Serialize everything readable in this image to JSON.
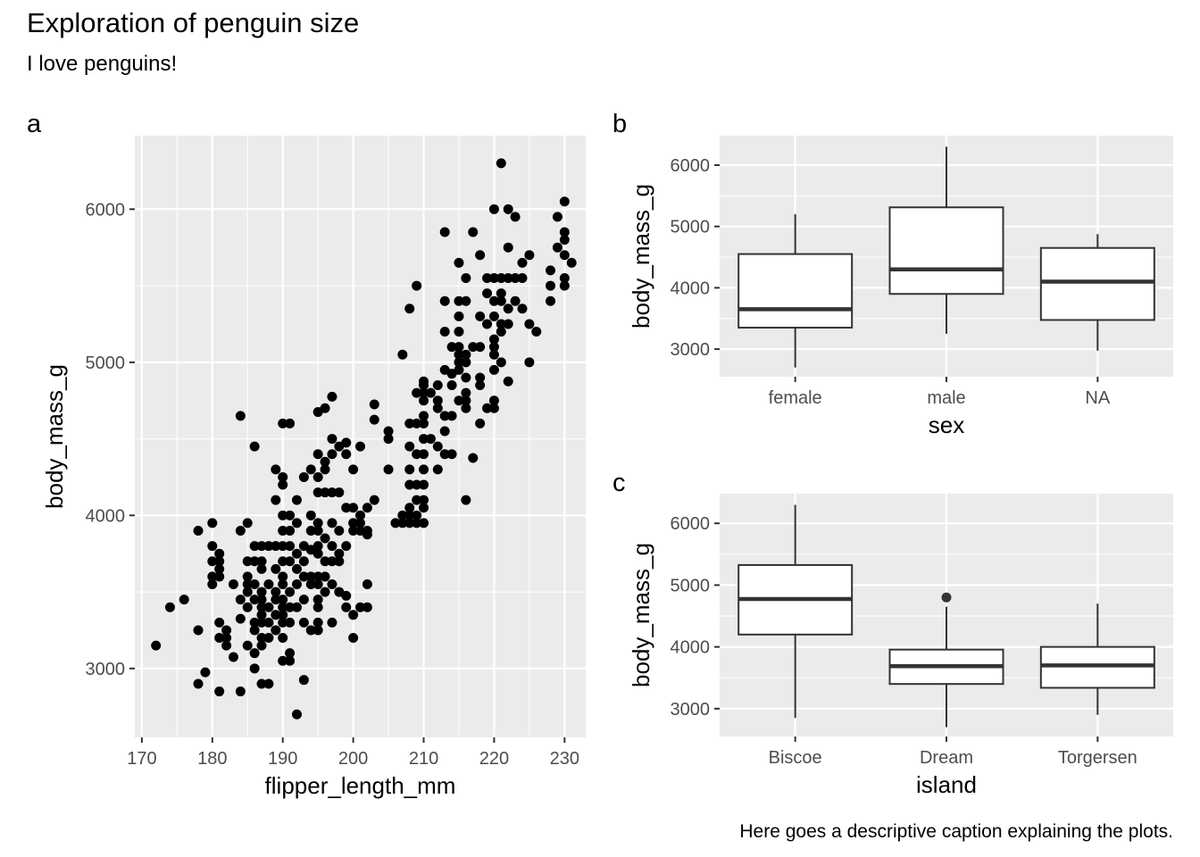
{
  "title": "Exploration of penguin size",
  "subtitle": "I love penguins!",
  "caption": "Here goes a descriptive caption explaining the plots.",
  "chart_data": [
    {
      "type": "scatter",
      "tag": "a",
      "xlabel": "flipper_length_mm",
      "ylabel": "body_mass_g",
      "xlim": [
        169,
        233
      ],
      "ylim": [
        2550,
        6480
      ],
      "xticks": [
        170,
        180,
        190,
        200,
        210,
        220,
        230
      ],
      "yticks": [
        3000,
        4000,
        5000,
        6000
      ],
      "grid": true,
      "points": [
        [
          172,
          3150
        ],
        [
          174,
          3400
        ],
        [
          176,
          3450
        ],
        [
          178,
          3250
        ],
        [
          178,
          2900
        ],
        [
          178,
          3900
        ],
        [
          179,
          2975
        ],
        [
          180,
          3950
        ],
        [
          180,
          3800
        ],
        [
          180,
          3700
        ],
        [
          180,
          3600
        ],
        [
          180,
          3550
        ],
        [
          181,
          3200
        ],
        [
          181,
          3300
        ],
        [
          181,
          3600
        ],
        [
          181,
          3650
        ],
        [
          181,
          3700
        ],
        [
          181,
          3750
        ],
        [
          181,
          2850
        ],
        [
          182,
          3150
        ],
        [
          182,
          3200
        ],
        [
          182,
          3250
        ],
        [
          183,
          3550
        ],
        [
          183,
          3075
        ],
        [
          184,
          3900
        ],
        [
          184,
          3450
        ],
        [
          184,
          3325
        ],
        [
          184,
          2850
        ],
        [
          184,
          4650
        ],
        [
          185,
          3700
        ],
        [
          185,
          3600
        ],
        [
          185,
          3550
        ],
        [
          185,
          3500
        ],
        [
          185,
          3400
        ],
        [
          185,
          3950
        ],
        [
          185,
          3150
        ],
        [
          186,
          3800
        ],
        [
          186,
          3700
        ],
        [
          186,
          3550
        ],
        [
          186,
          3450
        ],
        [
          186,
          3300
        ],
        [
          186,
          3250
        ],
        [
          186,
          3100
        ],
        [
          186,
          3000
        ],
        [
          186,
          4450
        ],
        [
          187,
          3800
        ],
        [
          187,
          3700
        ],
        [
          187,
          3650
        ],
        [
          187,
          3500
        ],
        [
          187,
          3450
        ],
        [
          187,
          3400
        ],
        [
          187,
          3350
        ],
        [
          187,
          3300
        ],
        [
          187,
          3200
        ],
        [
          187,
          3150
        ],
        [
          187,
          2900
        ],
        [
          188,
          3800
        ],
        [
          188,
          3550
        ],
        [
          188,
          3300
        ],
        [
          188,
          3200
        ],
        [
          188,
          2900
        ],
        [
          188,
          3400
        ],
        [
          189,
          4300
        ],
        [
          189,
          4100
        ],
        [
          189,
          3800
        ],
        [
          189,
          3650
        ],
        [
          189,
          3500
        ],
        [
          189,
          3450
        ],
        [
          189,
          3350
        ],
        [
          189,
          3250
        ],
        [
          190,
          4250
        ],
        [
          190,
          4200
        ],
        [
          190,
          4000
        ],
        [
          190,
          3900
        ],
        [
          190,
          3800
        ],
        [
          190,
          3700
        ],
        [
          190,
          3600
        ],
        [
          190,
          3550
        ],
        [
          190,
          3450
        ],
        [
          190,
          3400
        ],
        [
          190,
          3350
        ],
        [
          190,
          3300
        ],
        [
          190,
          3200
        ],
        [
          190,
          3050
        ],
        [
          190,
          4600
        ],
        [
          191,
          4600
        ],
        [
          191,
          4000
        ],
        [
          191,
          3900
        ],
        [
          191,
          3800
        ],
        [
          191,
          3700
        ],
        [
          191,
          3500
        ],
        [
          191,
          3300
        ],
        [
          191,
          3100
        ],
        [
          191,
          3050
        ],
        [
          191,
          3400
        ],
        [
          192,
          4100
        ],
        [
          192,
          3950
        ],
        [
          192,
          3750
        ],
        [
          192,
          3650
        ],
        [
          192,
          3550
        ],
        [
          192,
          3400
        ],
        [
          192,
          2700
        ],
        [
          193,
          4250
        ],
        [
          193,
          3800
        ],
        [
          193,
          3700
        ],
        [
          193,
          3600
        ],
        [
          193,
          3450
        ],
        [
          193,
          3300
        ],
        [
          193,
          2925
        ],
        [
          194,
          4300
        ],
        [
          194,
          4000
        ],
        [
          194,
          3900
        ],
        [
          194,
          3775
        ],
        [
          194,
          3600
        ],
        [
          194,
          3550
        ],
        [
          194,
          3250
        ],
        [
          195,
          4675
        ],
        [
          195,
          4400
        ],
        [
          195,
          4250
        ],
        [
          195,
          4150
        ],
        [
          195,
          3950
        ],
        [
          195,
          3900
        ],
        [
          195,
          3800
        ],
        [
          195,
          3750
        ],
        [
          195,
          3600
        ],
        [
          195,
          3550
        ],
        [
          195,
          3450
        ],
        [
          195,
          3300
        ],
        [
          195,
          3250
        ],
        [
          195,
          3400
        ],
        [
          196,
          4700
        ],
        [
          196,
          4350
        ],
        [
          196,
          4300
        ],
        [
          196,
          4150
        ],
        [
          196,
          3850
        ],
        [
          196,
          3700
        ],
        [
          196,
          3500
        ],
        [
          196,
          3600
        ],
        [
          197,
          4775
        ],
        [
          197,
          4500
        ],
        [
          197,
          4400
        ],
        [
          197,
          4150
        ],
        [
          197,
          3950
        ],
        [
          197,
          3800
        ],
        [
          197,
          3700
        ],
        [
          197,
          3550
        ],
        [
          197,
          3300
        ],
        [
          198,
          4450
        ],
        [
          198,
          4150
        ],
        [
          198,
          3900
        ],
        [
          198,
          3750
        ],
        [
          198,
          3500
        ],
        [
          198,
          3700
        ],
        [
          199,
          4475
        ],
        [
          199,
          4400
        ],
        [
          199,
          4050
        ],
        [
          199,
          3800
        ],
        [
          199,
          3475
        ],
        [
          199,
          3400
        ],
        [
          200,
          4300
        ],
        [
          200,
          4050
        ],
        [
          200,
          3950
        ],
        [
          200,
          3900
        ],
        [
          200,
          3350
        ],
        [
          200,
          3200
        ],
        [
          201,
          4450
        ],
        [
          201,
          4000
        ],
        [
          201,
          3900
        ],
        [
          201,
          3400
        ],
        [
          201,
          3950
        ],
        [
          202,
          4050
        ],
        [
          202,
          3875
        ],
        [
          202,
          3550
        ],
        [
          202,
          3400
        ],
        [
          202,
          3900
        ],
        [
          203,
          4725
        ],
        [
          203,
          4625
        ],
        [
          203,
          4100
        ],
        [
          205,
          4550
        ],
        [
          205,
          4300
        ],
        [
          205,
          4500
        ],
        [
          206,
          3950
        ],
        [
          207,
          5050
        ],
        [
          207,
          4000
        ],
        [
          207,
          3950
        ],
        [
          208,
          5350
        ],
        [
          208,
          4600
        ],
        [
          208,
          4450
        ],
        [
          208,
          4300
        ],
        [
          208,
          4200
        ],
        [
          208,
          4050
        ],
        [
          208,
          4000
        ],
        [
          208,
          3950
        ],
        [
          209,
          5500
        ],
        [
          209,
          4800
        ],
        [
          209,
          4600
        ],
        [
          209,
          4400
        ],
        [
          209,
          4200
        ],
        [
          209,
          4100
        ],
        [
          209,
          4000
        ],
        [
          209,
          3950
        ],
        [
          210,
          4875
        ],
        [
          210,
          4850
        ],
        [
          210,
          4800
        ],
        [
          210,
          4750
        ],
        [
          210,
          4650
        ],
        [
          210,
          4600
        ],
        [
          210,
          4500
        ],
        [
          210,
          4400
        ],
        [
          210,
          4300
        ],
        [
          210,
          4200
        ],
        [
          210,
          4100
        ],
        [
          210,
          4050
        ],
        [
          210,
          3950
        ],
        [
          211,
          4800
        ],
        [
          211,
          4500
        ],
        [
          212,
          4850
        ],
        [
          212,
          4750
        ],
        [
          212,
          4700
        ],
        [
          212,
          4450
        ],
        [
          212,
          4300
        ],
        [
          213,
          5850
        ],
        [
          213,
          5400
        ],
        [
          213,
          5200
        ],
        [
          213,
          4950
        ],
        [
          213,
          4650
        ],
        [
          213,
          4550
        ],
        [
          213,
          4400
        ],
        [
          214,
          5100
        ],
        [
          214,
          4925
        ],
        [
          214,
          4850
        ],
        [
          214,
          4650
        ],
        [
          214,
          4400
        ],
        [
          215,
          5650
        ],
        [
          215,
          5400
        ],
        [
          215,
          5300
        ],
        [
          215,
          5200
        ],
        [
          215,
          5100
        ],
        [
          215,
          5050
        ],
        [
          215,
          5000
        ],
        [
          215,
          4950
        ],
        [
          215,
          4750
        ],
        [
          216,
          5550
        ],
        [
          216,
          5400
        ],
        [
          216,
          5050
        ],
        [
          216,
          5000
        ],
        [
          216,
          4900
        ],
        [
          216,
          4800
        ],
        [
          216,
          4750
        ],
        [
          216,
          4700
        ],
        [
          216,
          4100
        ],
        [
          217,
          5850
        ],
        [
          217,
          5100
        ],
        [
          217,
          4375
        ],
        [
          218,
          5700
        ],
        [
          218,
          5300
        ],
        [
          218,
          5100
        ],
        [
          218,
          4900
        ],
        [
          218,
          4850
        ],
        [
          218,
          4600
        ],
        [
          219,
          5550
        ],
        [
          219,
          5450
        ],
        [
          219,
          5250
        ],
        [
          219,
          4700
        ],
        [
          220,
          6000
        ],
        [
          220,
          5550
        ],
        [
          220,
          5400
        ],
        [
          220,
          5300
        ],
        [
          220,
          5150
        ],
        [
          220,
          5100
        ],
        [
          220,
          5050
        ],
        [
          220,
          4950
        ],
        [
          220,
          4750
        ],
        [
          220,
          4700
        ],
        [
          221,
          6300
        ],
        [
          221,
          5550
        ],
        [
          221,
          5450
        ],
        [
          221,
          5400
        ],
        [
          221,
          5200
        ],
        [
          221,
          5000
        ],
        [
          221,
          5250
        ],
        [
          222,
          6000
        ],
        [
          222,
          5750
        ],
        [
          222,
          5550
        ],
        [
          222,
          5350
        ],
        [
          222,
          5250
        ],
        [
          222,
          4875
        ],
        [
          223,
          5950
        ],
        [
          223,
          5550
        ],
        [
          223,
          5400
        ],
        [
          224,
          5650
        ],
        [
          224,
          5550
        ],
        [
          224,
          5350
        ],
        [
          225,
          5700
        ],
        [
          225,
          5250
        ],
        [
          225,
          5000
        ],
        [
          226,
          5200
        ],
        [
          228,
          5600
        ],
        [
          228,
          5500
        ],
        [
          228,
          5400
        ],
        [
          229,
          5950
        ],
        [
          229,
          5750
        ],
        [
          230,
          6050
        ],
        [
          230,
          5850
        ],
        [
          230,
          5800
        ],
        [
          230,
          5700
        ],
        [
          230,
          5550
        ],
        [
          230,
          5500
        ],
        [
          231,
          5650
        ]
      ]
    },
    {
      "type": "box",
      "tag": "b",
      "xlabel": "sex",
      "ylabel": "body_mass_g",
      "ylim": [
        2550,
        6480
      ],
      "yticks": [
        3000,
        4000,
        5000,
        6000
      ],
      "grid": true,
      "boxes": [
        {
          "category": "female",
          "min": 2700,
          "q1": 3350,
          "median": 3650,
          "q3": 4550,
          "max": 5200,
          "outliers": []
        },
        {
          "category": "male",
          "min": 3250,
          "q1": 3900,
          "median": 4300,
          "q3": 5312,
          "max": 6300,
          "outliers": []
        },
        {
          "category": "NA",
          "min": 2975,
          "q1": 3475,
          "median": 4100,
          "q3": 4650,
          "max": 4875,
          "outliers": []
        }
      ]
    },
    {
      "type": "box",
      "tag": "c",
      "xlabel": "island",
      "ylabel": "body_mass_g",
      "ylim": [
        2550,
        6480
      ],
      "yticks": [
        3000,
        4000,
        5000,
        6000
      ],
      "grid": true,
      "boxes": [
        {
          "category": "Biscoe",
          "min": 2850,
          "q1": 4200,
          "median": 4775,
          "q3": 5325,
          "max": 6300,
          "outliers": []
        },
        {
          "category": "Dream",
          "min": 2700,
          "q1": 3400,
          "median": 3688,
          "q3": 3956,
          "max": 4650,
          "outliers": [
            4800
          ]
        },
        {
          "category": "Torgersen",
          "min": 2900,
          "q1": 3338,
          "median": 3700,
          "q3": 4000,
          "max": 4700,
          "outliers": []
        }
      ]
    }
  ]
}
